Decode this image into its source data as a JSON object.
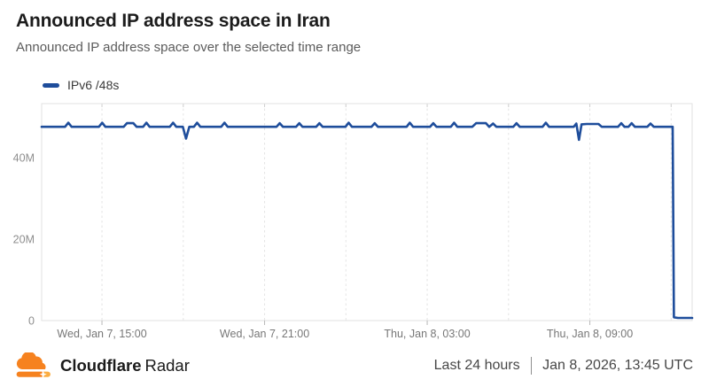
{
  "header": {
    "title": "Announced IP address space in Iran",
    "subtitle": "Announced IP address space over the selected time range"
  },
  "legend": {
    "items": [
      {
        "label": "IPv6 /48s",
        "color": "#1e4d9b"
      }
    ]
  },
  "chart_data": {
    "type": "line",
    "title": "Announced IP address space in Iran",
    "values_unit": "millions of /48s",
    "ylim": [
      0,
      53.3
    ],
    "grid": "vertical-dashed",
    "legend_position": "top-left",
    "y_ticks": [
      {
        "value": 0,
        "label": "0"
      },
      {
        "value": 20,
        "label": "20M"
      },
      {
        "value": 40,
        "label": "40M"
      }
    ],
    "x_ticks": [
      {
        "pos": 0.0927,
        "label": "Wed, Jan 7, 15:00"
      },
      {
        "pos": 0.3427,
        "label": "Wed, Jan 7, 21:00"
      },
      {
        "pos": 0.5927,
        "label": "Thu, Jan 8, 03:00"
      },
      {
        "pos": 0.8427,
        "label": "Thu, Jan 8, 09:00"
      }
    ],
    "gridlines": [
      0.0927,
      0.2177,
      0.3427,
      0.4677,
      0.5927,
      0.7177,
      0.8427,
      0.9677
    ],
    "series": [
      {
        "name": "IPv6 /48s",
        "color": "#1e4d9b",
        "points": [
          [
            0.0,
            47.6
          ],
          [
            0.036,
            47.6
          ],
          [
            0.041,
            48.6
          ],
          [
            0.046,
            47.6
          ],
          [
            0.088,
            47.6
          ],
          [
            0.093,
            48.6
          ],
          [
            0.098,
            47.6
          ],
          [
            0.126,
            47.6
          ],
          [
            0.131,
            48.5
          ],
          [
            0.141,
            48.5
          ],
          [
            0.146,
            47.6
          ],
          [
            0.156,
            47.6
          ],
          [
            0.161,
            48.6
          ],
          [
            0.166,
            47.6
          ],
          [
            0.197,
            47.6
          ],
          [
            0.202,
            48.6
          ],
          [
            0.207,
            47.6
          ],
          [
            0.217,
            47.6
          ],
          [
            0.222,
            44.7
          ],
          [
            0.227,
            47.6
          ],
          [
            0.234,
            47.6
          ],
          [
            0.239,
            48.6
          ],
          [
            0.244,
            47.6
          ],
          [
            0.276,
            47.6
          ],
          [
            0.281,
            48.6
          ],
          [
            0.286,
            47.6
          ],
          [
            0.361,
            47.6
          ],
          [
            0.366,
            48.5
          ],
          [
            0.371,
            47.6
          ],
          [
            0.391,
            47.6
          ],
          [
            0.396,
            48.5
          ],
          [
            0.401,
            47.6
          ],
          [
            0.422,
            47.6
          ],
          [
            0.427,
            48.5
          ],
          [
            0.432,
            47.6
          ],
          [
            0.467,
            47.6
          ],
          [
            0.472,
            48.6
          ],
          [
            0.477,
            47.6
          ],
          [
            0.507,
            47.6
          ],
          [
            0.512,
            48.5
          ],
          [
            0.517,
            47.6
          ],
          [
            0.561,
            47.6
          ],
          [
            0.566,
            48.6
          ],
          [
            0.571,
            47.6
          ],
          [
            0.597,
            47.6
          ],
          [
            0.602,
            48.5
          ],
          [
            0.607,
            47.6
          ],
          [
            0.629,
            47.6
          ],
          [
            0.634,
            48.6
          ],
          [
            0.639,
            47.6
          ],
          [
            0.662,
            47.6
          ],
          [
            0.668,
            48.5
          ],
          [
            0.683,
            48.5
          ],
          [
            0.688,
            47.6
          ],
          [
            0.694,
            48.4
          ],
          [
            0.699,
            47.6
          ],
          [
            0.725,
            47.6
          ],
          [
            0.73,
            48.5
          ],
          [
            0.735,
            47.6
          ],
          [
            0.77,
            47.6
          ],
          [
            0.775,
            48.6
          ],
          [
            0.78,
            47.6
          ],
          [
            0.818,
            47.6
          ],
          [
            0.822,
            48.4
          ],
          [
            0.826,
            44.4
          ],
          [
            0.83,
            48.2
          ],
          [
            0.838,
            48.3
          ],
          [
            0.856,
            48.3
          ],
          [
            0.861,
            47.6
          ],
          [
            0.886,
            47.6
          ],
          [
            0.891,
            48.5
          ],
          [
            0.896,
            47.6
          ],
          [
            0.902,
            47.6
          ],
          [
            0.907,
            48.5
          ],
          [
            0.912,
            47.6
          ],
          [
            0.931,
            47.6
          ],
          [
            0.936,
            48.4
          ],
          [
            0.941,
            47.6
          ],
          [
            0.97,
            47.6
          ],
          [
            0.972,
            0.8
          ],
          [
            0.978,
            0.65
          ],
          [
            1.0,
            0.65
          ]
        ]
      }
    ]
  },
  "footer": {
    "brand_name": "Cloudflare",
    "brand_product": "Radar",
    "range_label": "Last 24 hours",
    "timestamp": "Jan 8, 2026, 13:45 UTC"
  },
  "colors": {
    "line_blue": "#1e4d9b",
    "logo_orange": "#F6821F",
    "logo_light_orange": "#FBAD41",
    "grid_gray": "#e4e4e4"
  }
}
